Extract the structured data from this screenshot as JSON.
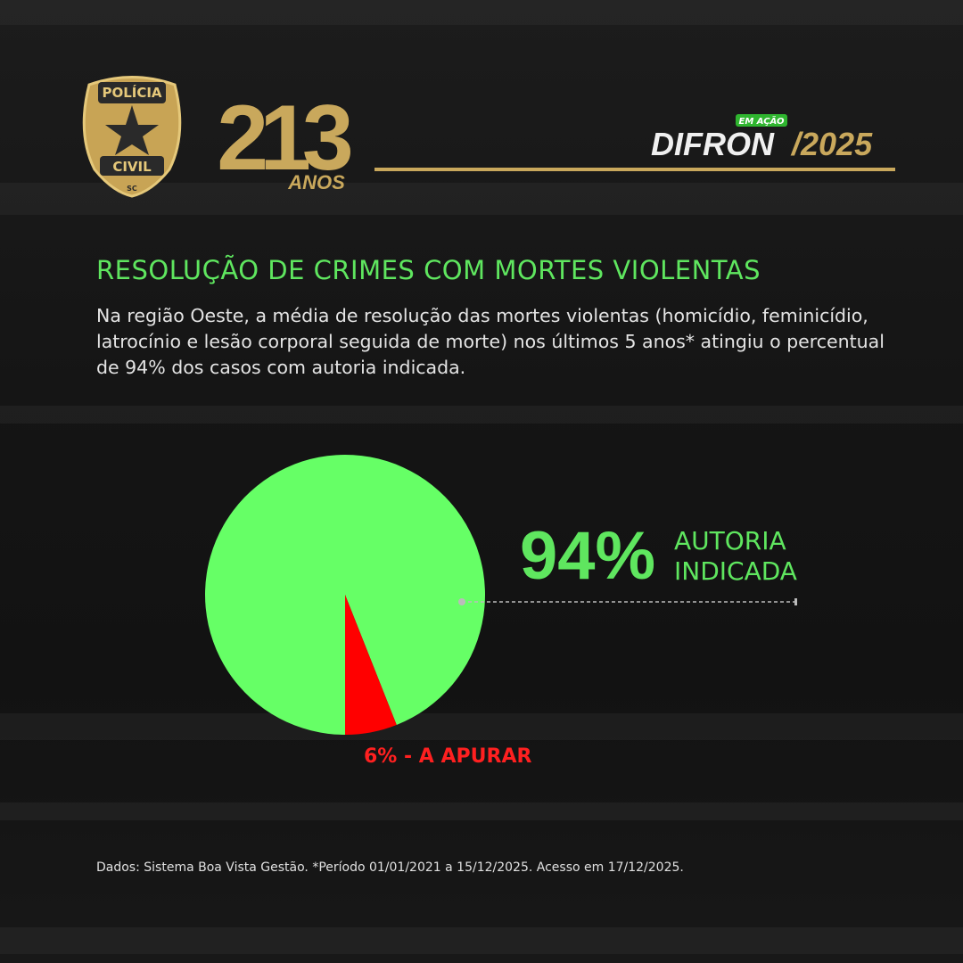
{
  "header": {
    "badge": {
      "top": "POLÍCIA",
      "bottom": "CIVIL",
      "state": "SC"
    },
    "anniversary": {
      "number": "213",
      "label": "ANOS"
    },
    "brand": {
      "tag": "EM AÇÃO",
      "name": "DIFRON",
      "year": "/2025"
    }
  },
  "chart_data": {
    "type": "pie",
    "title": "RESOLUÇÃO DE CRIMES COM MORTES VIOLENTAS",
    "subtitle": "Na região Oeste, a média de resolução das mortes violentas (homicídio, feminicídio, latrocínio e lesão corporal seguida de morte) nos últimos 5 anos* atingiu o percentual de 94% dos casos com autoria indicada.",
    "categories": [
      "AUTORIA INDICADA",
      null
    ],
    "values": [
      94,
      6
    ],
    "value_labels": [
      "94%",
      "6% - A APURAR"
    ],
    "colors": [
      "#66ff66",
      "#ff0000"
    ]
  },
  "footer": {
    "source": "Dados: Sistema Boa Vista Gestão. *Período 01/01/2021 a 15/12/2025. Acesso em 17/12/2025."
  }
}
